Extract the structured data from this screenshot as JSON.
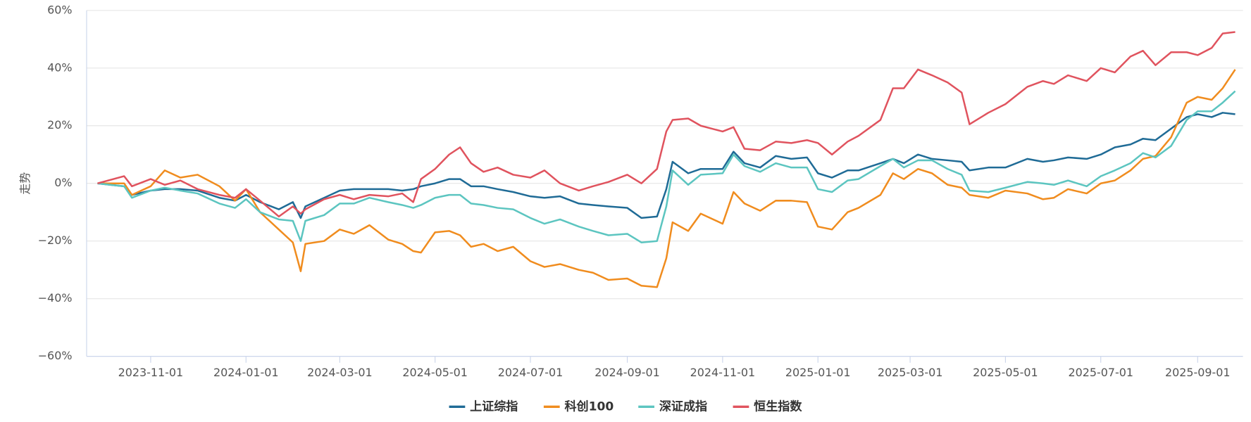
{
  "chart_data": {
    "type": "line",
    "y_label": "走势",
    "x": [
      "2023-09-28",
      "2023-10-15",
      "2023-10-20",
      "2023-11-01",
      "2023-11-10",
      "2023-11-20",
      "2023-12-01",
      "2023-12-15",
      "2023-12-25",
      "2024-01-01",
      "2024-01-10",
      "2024-01-22",
      "2024-01-31",
      "2024-02-05",
      "2024-02-08",
      "2024-02-20",
      "2024-03-01",
      "2024-03-10",
      "2024-03-20",
      "2024-04-01",
      "2024-04-10",
      "2024-04-17",
      "2024-04-22",
      "2024-05-01",
      "2024-05-10",
      "2024-05-17",
      "2024-05-24",
      "2024-06-01",
      "2024-06-10",
      "2024-06-20",
      "2024-07-01",
      "2024-07-10",
      "2024-07-20",
      "2024-08-01",
      "2024-08-10",
      "2024-08-20",
      "2024-09-01",
      "2024-09-10",
      "2024-09-20",
      "2024-09-26",
      "2024-09-30",
      "2024-10-10",
      "2024-10-18",
      "2024-11-01",
      "2024-11-08",
      "2024-11-15",
      "2024-11-25",
      "2024-12-05",
      "2024-12-15",
      "2024-12-25",
      "2025-01-01",
      "2025-01-10",
      "2025-01-20",
      "2025-01-27",
      "2025-02-10",
      "2025-02-18",
      "2025-02-25",
      "2025-03-06",
      "2025-03-15",
      "2025-03-25",
      "2025-04-03",
      "2025-04-08",
      "2025-04-20",
      "2025-05-01",
      "2025-05-15",
      "2025-05-25",
      "2025-06-01",
      "2025-06-10",
      "2025-06-22",
      "2025-07-01",
      "2025-07-10",
      "2025-07-20",
      "2025-07-28",
      "2025-08-05",
      "2025-08-15",
      "2025-08-25",
      "2025-09-01",
      "2025-09-10",
      "2025-09-17",
      "2025-09-25"
    ],
    "series": [
      {
        "name": "上证综指",
        "color": "#1f6b96",
        "values": [
          0,
          -1,
          -4,
          -2.5,
          -2,
          -2,
          -2.5,
          -5,
          -6,
          -4,
          -6.5,
          -9,
          -6.5,
          -12,
          -8,
          -5,
          -2.5,
          -2,
          -2,
          -2,
          -2.5,
          -2,
          -1,
          0,
          1.5,
          1.5,
          -1,
          -1,
          -2,
          -3,
          -4.5,
          -5,
          -4.5,
          -7,
          -7.5,
          -8,
          -8.5,
          -12,
          -11.5,
          -2,
          7.5,
          3.5,
          5,
          5,
          11,
          7,
          5.5,
          9.5,
          8.5,
          9,
          3.5,
          2,
          4.5,
          4.5,
          7,
          8.5,
          7,
          10,
          8.5,
          8,
          7.5,
          4.5,
          5.5,
          5.5,
          8.5,
          7.5,
          8,
          9,
          8.5,
          10,
          12.5,
          13.5,
          15.5,
          15,
          19,
          23,
          24,
          23,
          24.5,
          24
        ]
      },
      {
        "name": "科创100",
        "color": "#f08c1e",
        "values": [
          0,
          0,
          -4,
          -1,
          4.5,
          2,
          3,
          -1,
          -6,
          -2,
          -10,
          -16,
          -20.5,
          -30.5,
          -21,
          -20,
          -16,
          -17.5,
          -14.5,
          -19.5,
          -21,
          -23.5,
          -24,
          -17,
          -16.5,
          -18,
          -22,
          -21,
          -23.5,
          -22,
          -27,
          -29,
          -28,
          -30,
          -31,
          -33.5,
          -33,
          -35.5,
          -36,
          -26,
          -13.5,
          -16.5,
          -10.5,
          -14,
          -3,
          -7,
          -9.5,
          -6,
          -6,
          -6.5,
          -15,
          -16,
          -10,
          -8.5,
          -4,
          3.5,
          1.5,
          5,
          3.5,
          -0.5,
          -1.5,
          -4,
          -5,
          -2.5,
          -3.5,
          -5.5,
          -5,
          -2,
          -3.5,
          0,
          1,
          4.5,
          8.5,
          9.5,
          16,
          28,
          30,
          29,
          33,
          39.5
        ]
      },
      {
        "name": "深证成指",
        "color": "#5cc5c0",
        "values": [
          0,
          -1,
          -5,
          -2.5,
          -1.5,
          -2.5,
          -3.5,
          -7,
          -8.5,
          -5.5,
          -10,
          -12.5,
          -13,
          -20,
          -13,
          -11,
          -7,
          -7,
          -5,
          -6.5,
          -7.5,
          -8.5,
          -7.5,
          -5,
          -4,
          -4,
          -7,
          -7.5,
          -8.5,
          -9,
          -12,
          -14,
          -12.5,
          -15,
          -16.5,
          -18,
          -17.5,
          -20.5,
          -20,
          -8,
          4.5,
          -0.5,
          3,
          3.5,
          10,
          6,
          4,
          7,
          5.5,
          5.5,
          -2,
          -3,
          1,
          1.5,
          6,
          8.5,
          5.5,
          8,
          8,
          5,
          3,
          -2.5,
          -3,
          -1.5,
          0.5,
          0,
          -0.5,
          1,
          -1,
          2.5,
          4.5,
          7,
          10.5,
          9,
          13,
          22,
          25,
          25,
          28,
          32
        ]
      },
      {
        "name": "恒生指数",
        "color": "#e0535e",
        "values": [
          0,
          2.5,
          -1,
          1.5,
          -0.5,
          1,
          -2,
          -4,
          -5,
          -2,
          -6,
          -11.5,
          -8,
          -10.5,
          -9,
          -5.5,
          -4,
          -5.5,
          -4,
          -4.5,
          -3.5,
          -6.5,
          1.5,
          5,
          10,
          12.5,
          7,
          4,
          5.5,
          3,
          2,
          4.5,
          0,
          -2.5,
          -1,
          0.5,
          3,
          0,
          5,
          18,
          22,
          22.5,
          20,
          18,
          19.5,
          12,
          11.5,
          14.5,
          14,
          15,
          14,
          10,
          14.5,
          16.5,
          22,
          33,
          33,
          39.5,
          37.5,
          35,
          31.5,
          20.5,
          24.5,
          27.5,
          33.5,
          35.5,
          34.5,
          37.5,
          35.5,
          40,
          38.5,
          44,
          46,
          41,
          45.5,
          45.5,
          44.5,
          47,
          52,
          52.5
        ]
      }
    ],
    "xlim": [
      "2023-09-21",
      "2025-09-30"
    ],
    "xticks": [
      "2023-11-01",
      "2024-01-01",
      "2024-03-01",
      "2024-05-01",
      "2024-07-01",
      "2024-09-01",
      "2024-11-01",
      "2025-01-01",
      "2025-03-01",
      "2025-05-01",
      "2025-07-01",
      "2025-09-01"
    ],
    "ylim": [
      -60,
      60
    ],
    "yticks": [
      {
        "value": -60,
        "label": "−60%"
      },
      {
        "value": -40,
        "label": "−40%"
      },
      {
        "value": -20,
        "label": "−20%"
      },
      {
        "value": 0,
        "label": "0%"
      },
      {
        "value": 20,
        "label": "20%"
      },
      {
        "value": 40,
        "label": "40%"
      },
      {
        "value": 60,
        "label": "60%"
      }
    ],
    "grid": true,
    "legend": "bottom"
  }
}
